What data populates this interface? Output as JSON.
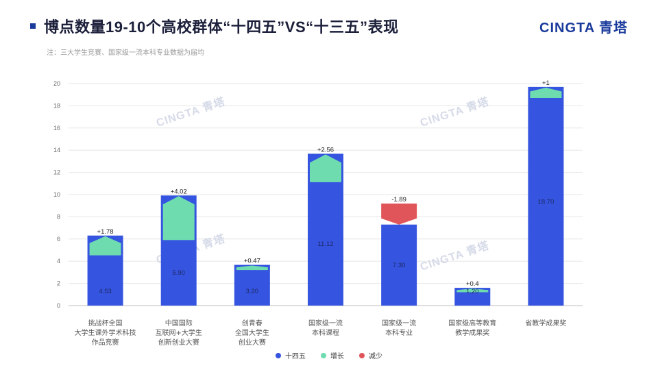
{
  "header": {
    "title": "博点数量19-10个高校群体“十四五”VS“十三五”表现",
    "brand": "CINGTA 青塔",
    "note": "注：三大学生竞赛、国家级一流本科专业数据为届均"
  },
  "watermark": "CINGTA 青塔",
  "colors": {
    "base": "#3554e0",
    "increase": "#6fdcb0",
    "decrease": "#e0555a"
  },
  "chart_data": {
    "type": "bar",
    "ylim": [
      0,
      20
    ],
    "yticks": [
      0,
      2,
      4,
      6,
      8,
      10,
      12,
      14,
      16,
      18,
      20
    ],
    "categories": [
      [
        "挑战杯全国",
        "大学生课外学术科技",
        "作品竞赛"
      ],
      [
        "中国国际",
        "互联网+大学生",
        "创新创业大赛"
      ],
      [
        "创青春",
        "全国大学生",
        "创业大赛"
      ],
      [
        "国家级一流",
        "本科课程"
      ],
      [
        "国家级一流",
        "本科专业"
      ],
      [
        "国家级高等教育",
        "教学成果奖"
      ],
      [
        "省教学成果奖"
      ]
    ],
    "series": [
      {
        "name": "十四五",
        "values": [
          4.53,
          5.9,
          3.2,
          11.12,
          7.3,
          1.2,
          18.7
        ]
      },
      {
        "name": "增长",
        "values": [
          1.78,
          4.02,
          0.47,
          2.56,
          0,
          0.4,
          1
        ]
      },
      {
        "name": "减少",
        "values": [
          0,
          0,
          0,
          0,
          1.89,
          0,
          0
        ]
      }
    ],
    "value_labels": [
      "4.53",
      "5.90",
      "3.20",
      "11.12",
      "7.30",
      "1.20",
      "18.70"
    ],
    "delta_labels": [
      "+1.78",
      "+4.02",
      "+0.47",
      "+2.56",
      "-1.89",
      "+0.4",
      "+1"
    ]
  },
  "legend": [
    {
      "label": "十四五",
      "color": "#3554e0"
    },
    {
      "label": "增长",
      "color": "#6fdcb0"
    },
    {
      "label": "减少",
      "color": "#e0555a"
    }
  ]
}
